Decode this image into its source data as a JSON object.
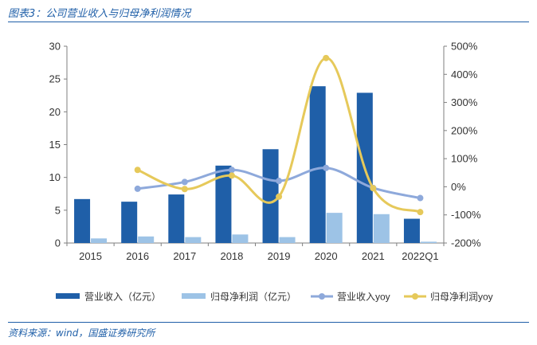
{
  "header": {
    "title": "图表3：公司营业收入与归母净利润情况"
  },
  "footer": {
    "source": "资料来源：wind，国盛证券研究所"
  },
  "colors": {
    "revenue_bar": "#1f5fa8",
    "profit_bar": "#9dc3e6",
    "revenue_yoy_line": "#8ea9db",
    "profit_yoy_line": "#e6c95a",
    "axis": "#7f7f7f",
    "text": "#333333"
  },
  "chart_data": {
    "type": "bar",
    "title": "",
    "xlabel": "",
    "ylabel": "",
    "categories": [
      "2015",
      "2016",
      "2017",
      "2018",
      "2019",
      "2020",
      "2021",
      "2022Q1"
    ],
    "ylim": [
      0,
      30
    ],
    "yticks": [
      "0",
      "5",
      "10",
      "15",
      "20",
      "25",
      "30"
    ],
    "y2lim": [
      -200,
      500
    ],
    "y2ticks": [
      "-200%",
      "-100%",
      "0%",
      "100%",
      "200%",
      "300%",
      "400%",
      "500%"
    ],
    "grid": false,
    "legend_position": "bottom",
    "series": [
      {
        "name": "营业收入（亿元）",
        "kind": "bar",
        "axis": "left",
        "values": [
          6.7,
          6.3,
          7.4,
          11.8,
          14.3,
          23.9,
          22.9,
          3.7
        ]
      },
      {
        "name": "归母净利润（亿元）",
        "kind": "bar",
        "axis": "left",
        "values": [
          0.7,
          1.0,
          0.9,
          1.3,
          0.9,
          4.6,
          4.4,
          0.2
        ]
      },
      {
        "name": "营业收入yoy",
        "kind": "line",
        "axis": "right",
        "values": [
          null,
          -7,
          17,
          60,
          21,
          67,
          -4,
          -40
        ]
      },
      {
        "name": "归母净利润yoy",
        "kind": "line",
        "axis": "right",
        "values": [
          null,
          60,
          -8,
          40,
          -35,
          458,
          -5,
          -90
        ]
      }
    ]
  }
}
